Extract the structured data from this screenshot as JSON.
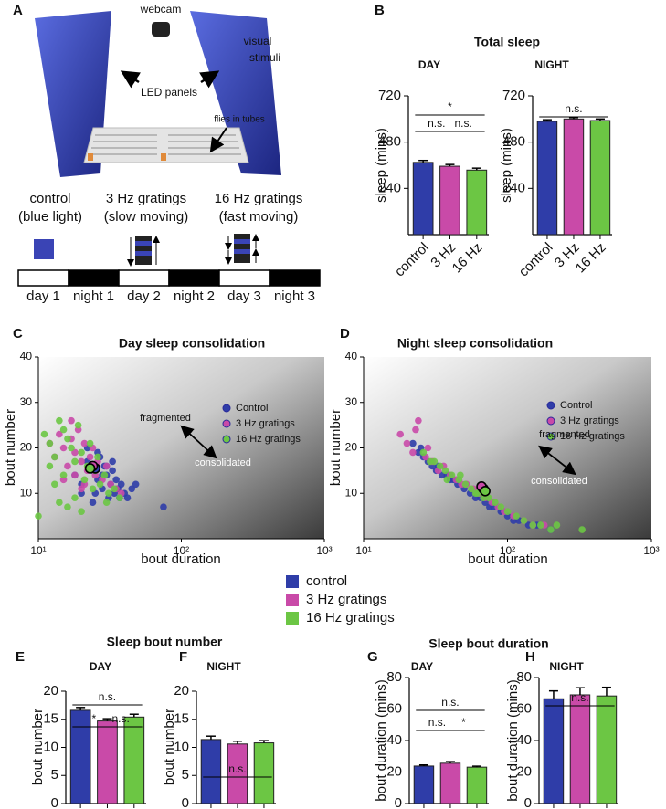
{
  "panel_a": {
    "label": "A",
    "webcam": "webcam",
    "visual": "visual",
    "stimuli": "stimuli",
    "led": "LED panels",
    "flies": "flies in tubes",
    "conditions": [
      {
        "line1": "control",
        "line2": "(blue light)"
      },
      {
        "line1": "3 Hz gratings",
        "line2": "(slow moving)"
      },
      {
        "line1": "16 Hz gratings",
        "line2": "(fast moving)"
      }
    ],
    "timeline": [
      "day 1",
      "night 1",
      "day 2",
      "night 2",
      "day 3",
      "night 3"
    ]
  },
  "legend": [
    {
      "name": "control",
      "color": "#2f3da8"
    },
    {
      "name": "3 Hz gratings",
      "color": "#c94aa8"
    },
    {
      "name": "16 Hz gratings",
      "color": "#6cc644"
    }
  ],
  "chart_data": [
    {
      "type": "bar",
      "label": "B",
      "title": "Total sleep",
      "subtitle": "DAY",
      "y_label": "sleep (mins)",
      "categories": [
        "control",
        "3 Hz",
        "16 Hz"
      ],
      "values": [
        375,
        355,
        335
      ],
      "errors": [
        10,
        9,
        10
      ],
      "colors": [
        "#2f3da8",
        "#c94aa8",
        "#6cc644"
      ],
      "ylim": [
        0,
        720
      ],
      "yticks": [
        240,
        480,
        720
      ],
      "annotations": [
        "*",
        "n.s.",
        "n.s."
      ]
    },
    {
      "type": "bar",
      "subtitle": "NIGHT",
      "y_label": "sleep (mins)",
      "categories": [
        "control",
        "3 Hz",
        "16 Hz"
      ],
      "values": [
        588,
        600,
        592
      ],
      "errors": [
        8,
        7,
        8
      ],
      "colors": [
        "#2f3da8",
        "#c94aa8",
        "#6cc644"
      ],
      "ylim": [
        0,
        720
      ],
      "yticks": [
        240,
        480,
        720
      ],
      "annotations": [
        "n.s."
      ]
    },
    {
      "type": "scatter",
      "label": "C",
      "title": "Day sleep consolidation",
      "x_label": "bout duration",
      "y_label": "bout number",
      "xscale": "log",
      "xlim": [
        10,
        1000
      ],
      "xticks": [
        {
          "value": 10,
          "label": "10¹"
        },
        {
          "value": 100,
          "label": "10²"
        },
        {
          "value": 1000,
          "label": "10³"
        }
      ],
      "ylim": [
        0,
        40
      ],
      "yticks": [
        10,
        20,
        30,
        40
      ],
      "annotations": [
        "fragmented",
        "consolidated"
      ],
      "series": [
        {
          "name": "Control",
          "color": "#2f3da8",
          "x": [
            18,
            20,
            22,
            24,
            25,
            26,
            27,
            28,
            29,
            30,
            31,
            32,
            33,
            34,
            35,
            36,
            38,
            40,
            42,
            45,
            48,
            22,
            26,
            30,
            75,
            20,
            24,
            28,
            33,
            37
          ],
          "y": [
            14,
            12,
            17,
            15,
            10,
            13,
            18,
            11,
            16,
            14,
            9,
            12,
            15,
            10,
            13,
            11,
            12,
            10,
            9,
            11,
            12,
            20,
            19,
            16,
            7,
            10,
            8,
            14,
            17,
            9
          ],
          "mean_x": 25,
          "mean_y": 15.5
        },
        {
          "name": "3 Hz gratings",
          "color": "#c94aa8",
          "x": [
            12,
            13,
            14,
            15,
            16,
            17,
            18,
            19,
            20,
            21,
            22,
            23,
            24,
            25,
            26,
            28,
            30,
            32,
            35,
            38,
            15,
            18,
            21,
            17,
            20
          ],
          "y": [
            21,
            18,
            23,
            20,
            16,
            22,
            19,
            24,
            17,
            21,
            15,
            18,
            20,
            14,
            17,
            13,
            16,
            12,
            11,
            10,
            13,
            14,
            12,
            26,
            11
          ],
          "mean_x": 24,
          "mean_y": 16
        },
        {
          "name": "16 Hz gratings",
          "color": "#6cc644",
          "x": [
            10,
            11,
            12,
            13,
            13,
            14,
            15,
            15,
            16,
            17,
            18,
            19,
            20,
            21,
            22,
            23,
            24,
            25,
            27,
            29,
            31,
            34,
            37,
            14,
            16,
            18,
            20,
            12,
            26,
            30
          ],
          "y": [
            5,
            23,
            21,
            18,
            12,
            26,
            24,
            14,
            22,
            20,
            17,
            25,
            19,
            13,
            16,
            21,
            11,
            15,
            12,
            14,
            10,
            11,
            9,
            8,
            7,
            9,
            6,
            16,
            18,
            8
          ],
          "mean_x": 23,
          "mean_y": 15.5
        }
      ]
    },
    {
      "type": "scatter",
      "label": "D",
      "title": "Night sleep consolidation",
      "x_label": "bout duration",
      "y_label": "bout number",
      "xscale": "log",
      "xlim": [
        10,
        1000
      ],
      "xticks": [
        {
          "value": 10,
          "label": "10¹"
        },
        {
          "value": 100,
          "label": "10²"
        },
        {
          "value": 1000,
          "label": "10³"
        }
      ],
      "ylim": [
        0,
        40
      ],
      "yticks": [
        10,
        20,
        30,
        40
      ],
      "annotations": [
        "fragmented",
        "consolidated"
      ],
      "series": [
        {
          "name": "Control",
          "color": "#2f3da8",
          "x": [
            22,
            24,
            26,
            28,
            30,
            32,
            35,
            38,
            40,
            45,
            50,
            55,
            60,
            65,
            70,
            75,
            80,
            90,
            100,
            110,
            120,
            140,
            160,
            200,
            25,
            33,
            42
          ],
          "y": [
            21,
            19,
            18,
            17,
            16,
            15,
            14,
            14,
            13,
            12,
            11,
            10,
            9,
            9,
            8,
            7,
            7,
            6,
            5,
            4,
            4,
            3,
            3,
            2,
            20,
            16,
            13
          ],
          "mean_x": 68,
          "mean_y": 11
        },
        {
          "name": "3 Hz gratings",
          "color": "#c94aa8",
          "x": [
            18,
            20,
            22,
            24,
            27,
            30,
            33,
            36,
            40,
            44,
            48,
            52,
            58,
            64,
            70,
            78,
            86,
            95,
            110,
            130,
            150,
            180,
            23,
            28
          ],
          "y": [
            23,
            21,
            19,
            26,
            18,
            17,
            15,
            16,
            14,
            13,
            12,
            12,
            11,
            10,
            9,
            8,
            7,
            6,
            5,
            4,
            3,
            3,
            24,
            20
          ],
          "mean_x": 66,
          "mean_y": 11.5
        },
        {
          "name": "16 Hz gratings",
          "color": "#6cc644",
          "x": [
            26,
            29,
            31,
            34,
            37,
            41,
            46,
            51,
            56,
            62,
            68,
            74,
            82,
            90,
            100,
            115,
            130,
            150,
            170,
            200,
            220,
            330,
            38,
            47,
            60
          ],
          "y": [
            19,
            17,
            17,
            16,
            15,
            14,
            13,
            12,
            11,
            10,
            9,
            9,
            8,
            7,
            6,
            5,
            4,
            3,
            3,
            2,
            3,
            2,
            13,
            14,
            10
          ],
          "mean_x": 70,
          "mean_y": 10.5
        }
      ]
    },
    {
      "type": "bar",
      "label": "E",
      "title": "Sleep bout number",
      "subtitle": "DAY",
      "y_label": "bout number",
      "values": [
        16.6,
        14.7,
        15.4
      ],
      "errors": [
        0.5,
        0.4,
        0.5
      ],
      "colors": [
        "#2f3da8",
        "#c94aa8",
        "#6cc644"
      ],
      "ylim": [
        0,
        20
      ],
      "yticks": [
        0,
        5,
        10,
        15,
        20
      ],
      "annotations": [
        "n.s.",
        "*",
        "n.s."
      ]
    },
    {
      "type": "bar",
      "label": "F",
      "subtitle": "NIGHT",
      "y_label": "bout number",
      "values": [
        11.4,
        10.6,
        10.8
      ],
      "errors": [
        0.6,
        0.5,
        0.4
      ],
      "colors": [
        "#2f3da8",
        "#c94aa8",
        "#6cc644"
      ],
      "ylim": [
        0,
        20
      ],
      "yticks": [
        0,
        5,
        10,
        15,
        20
      ],
      "annotations": [
        "n.s."
      ]
    },
    {
      "type": "bar",
      "label": "G",
      "title": "Sleep bout duration",
      "subtitle": "DAY",
      "y_label": "bout duration (mins)",
      "values": [
        23.8,
        25.6,
        23.1
      ],
      "errors": [
        0.7,
        1.0,
        0.6
      ],
      "colors": [
        "#2f3da8",
        "#c94aa8",
        "#6cc644"
      ],
      "ylim": [
        0,
        80
      ],
      "yticks": [
        0,
        20,
        40,
        60,
        80
      ],
      "annotations": [
        "n.s.",
        "n.s.",
        "*"
      ]
    },
    {
      "type": "bar",
      "label": "H",
      "subtitle": "NIGHT",
      "y_label": "bout duration (mins)",
      "values": [
        66.5,
        69,
        68.3
      ],
      "errors": [
        5,
        4.5,
        5.5
      ],
      "colors": [
        "#2f3da8",
        "#c94aa8",
        "#6cc644"
      ],
      "ylim": [
        0,
        80
      ],
      "yticks": [
        0,
        20,
        40,
        60,
        80
      ],
      "annotations": [
        "n.s."
      ]
    }
  ]
}
